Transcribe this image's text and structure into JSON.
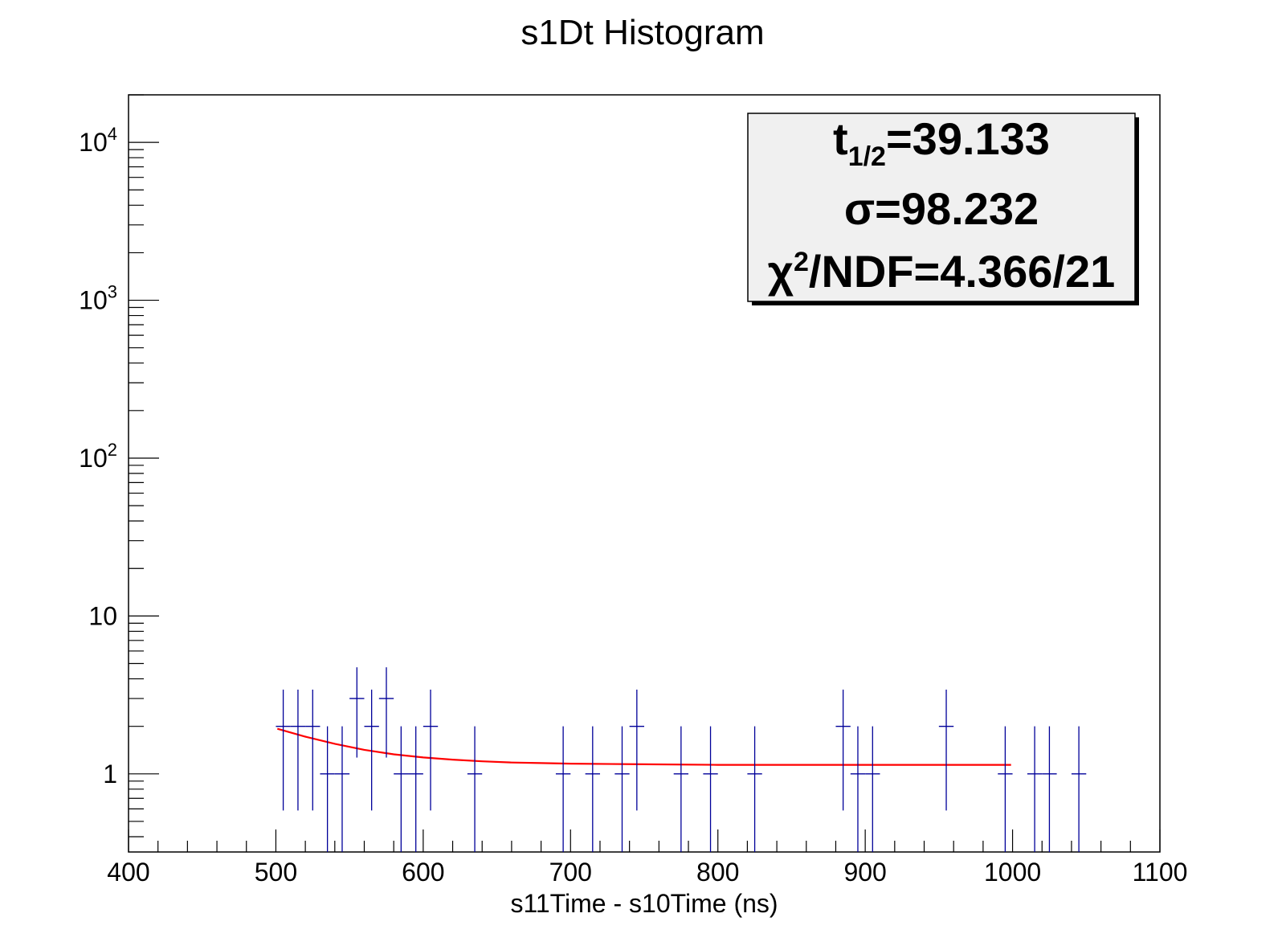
{
  "chart_data": {
    "type": "scatter",
    "title": "s1Dt Histogram",
    "xlabel": "s11Time - s10Time (ns)",
    "ylabel": "",
    "xlim": [
      400,
      1100
    ],
    "ylim": [
      0.32,
      20000
    ],
    "y_scale": "log",
    "grid": false,
    "legend": "none",
    "x_ticks": [
      "400",
      "500",
      "600",
      "700",
      "800",
      "900",
      "1000",
      "1100"
    ],
    "y_ticks": [
      {
        "value": 1,
        "base": "1",
        "exp": ""
      },
      {
        "value": 10,
        "base": "10",
        "exp": ""
      },
      {
        "value": 100,
        "base": "10",
        "exp": "2"
      },
      {
        "value": 1000,
        "base": "10",
        "exp": "3"
      },
      {
        "value": 10000,
        "base": "10",
        "exp": "4"
      }
    ],
    "colors": {
      "data": "#000099",
      "fit": "#ff0000"
    },
    "series": [
      {
        "kind": "histogram-errorbars",
        "bin_width": 10,
        "points": [
          {
            "x": 505,
            "y": 2
          },
          {
            "x": 515,
            "y": 2
          },
          {
            "x": 525,
            "y": 2
          },
          {
            "x": 535,
            "y": 1
          },
          {
            "x": 545,
            "y": 1
          },
          {
            "x": 555,
            "y": 3
          },
          {
            "x": 565,
            "y": 2
          },
          {
            "x": 575,
            "y": 3
          },
          {
            "x": 585,
            "y": 1
          },
          {
            "x": 595,
            "y": 1
          },
          {
            "x": 605,
            "y": 2
          },
          {
            "x": 635,
            "y": 1
          },
          {
            "x": 695,
            "y": 1
          },
          {
            "x": 715,
            "y": 1
          },
          {
            "x": 735,
            "y": 1
          },
          {
            "x": 745,
            "y": 2
          },
          {
            "x": 775,
            "y": 1
          },
          {
            "x": 795,
            "y": 1
          },
          {
            "x": 825,
            "y": 1
          },
          {
            "x": 885,
            "y": 2
          },
          {
            "x": 895,
            "y": 1
          },
          {
            "x": 905,
            "y": 1
          },
          {
            "x": 955,
            "y": 2
          },
          {
            "x": 995,
            "y": 1
          },
          {
            "x": 1015,
            "y": 1
          },
          {
            "x": 1025,
            "y": 1
          },
          {
            "x": 1045,
            "y": 1
          }
        ]
      },
      {
        "kind": "fit-curve",
        "x": [
          501,
          520,
          540,
          560,
          580,
          600,
          620,
          640,
          660,
          680,
          700,
          750,
          800,
          850,
          900,
          950,
          999
        ],
        "y": [
          1.93,
          1.72,
          1.55,
          1.42,
          1.33,
          1.27,
          1.23,
          1.2,
          1.18,
          1.17,
          1.16,
          1.15,
          1.14,
          1.14,
          1.14,
          1.14,
          1.14
        ]
      }
    ],
    "stats_box": {
      "placement": "top-right",
      "line1": {
        "main": "t",
        "sub": "1/2",
        "rest": "=39.133"
      },
      "line2": "σ=98.232",
      "line3": {
        "main": "χ",
        "sup": "2",
        "rest": "/NDF=4.366/21"
      }
    }
  }
}
